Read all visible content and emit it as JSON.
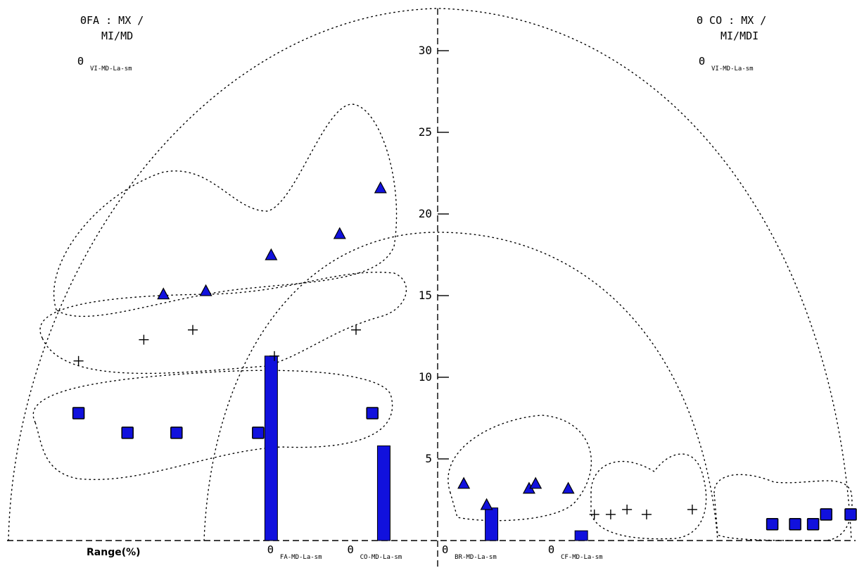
{
  "chart_data": {
    "type": "scatter",
    "ylim": [
      0,
      33
    ],
    "yticks": [
      5,
      10,
      15,
      20,
      25,
      30
    ],
    "xlabel": "Range(%)",
    "grid": false,
    "corner_labels": {
      "top_left_line1": "ΘFA : MX /",
      "top_left_line2": "MI/MD",
      "top_left_theta": "Θ",
      "top_left_theta_sub": "VI-MD-La-sm",
      "top_right_line1": "Θ CO : MX /",
      "top_right_line2": "MI/MDI",
      "top_right_theta": "Θ",
      "top_right_theta_sub": "VI-MD-La-sm"
    },
    "category_labels": [
      {
        "theta": "Θ",
        "sub": "FA-MD-La-sm",
        "x": -9.4
      },
      {
        "theta": "Θ",
        "sub": "CO-MD-La-sm",
        "x": -4.5
      },
      {
        "theta": "Θ",
        "sub": "BR-MD-La-sm",
        "x": 1.3
      },
      {
        "theta": "Θ",
        "sub": "CF-MD-La-sm",
        "x": 7.8
      }
    ],
    "series": [
      {
        "marker": "triangle",
        "color": "#1111dd",
        "points": [
          [
            -16.8,
            15.1
          ],
          [
            -14.2,
            15.3
          ],
          [
            -10.2,
            17.5
          ],
          [
            -6.0,
            18.8
          ],
          [
            -3.5,
            21.6
          ],
          [
            1.6,
            3.5
          ],
          [
            3.0,
            2.2
          ],
          [
            5.6,
            3.2
          ],
          [
            6.0,
            3.5
          ],
          [
            8.0,
            3.2
          ]
        ]
      },
      {
        "marker": "plus",
        "color": "#000000",
        "points": [
          [
            -22.0,
            11.0
          ],
          [
            -18.0,
            12.3
          ],
          [
            -15.0,
            12.9
          ],
          [
            -10.0,
            11.3
          ],
          [
            -5.0,
            12.9
          ],
          [
            9.6,
            1.6
          ],
          [
            10.6,
            1.6
          ],
          [
            11.6,
            1.9
          ],
          [
            12.8,
            1.6
          ],
          [
            15.6,
            1.9
          ]
        ]
      },
      {
        "marker": "square",
        "color": "#1111dd",
        "points": [
          [
            -22.0,
            7.8
          ],
          [
            -19.0,
            6.6
          ],
          [
            -16.0,
            6.6
          ],
          [
            -11.0,
            6.6
          ],
          [
            -4.0,
            7.8
          ],
          [
            20.5,
            1.0
          ],
          [
            21.9,
            1.0
          ],
          [
            23.0,
            1.0
          ],
          [
            23.8,
            1.6
          ],
          [
            25.3,
            1.6
          ]
        ]
      }
    ],
    "bars": [
      {
        "x": -10.2,
        "value": 11.3,
        "color": "#1111dd"
      },
      {
        "x": -3.3,
        "value": 5.8,
        "color": "#1111dd"
      },
      {
        "x": 3.3,
        "value": 2.0,
        "color": "#1111dd"
      },
      {
        "x": 8.8,
        "value": 0.6,
        "color": "#1111dd"
      }
    ]
  }
}
